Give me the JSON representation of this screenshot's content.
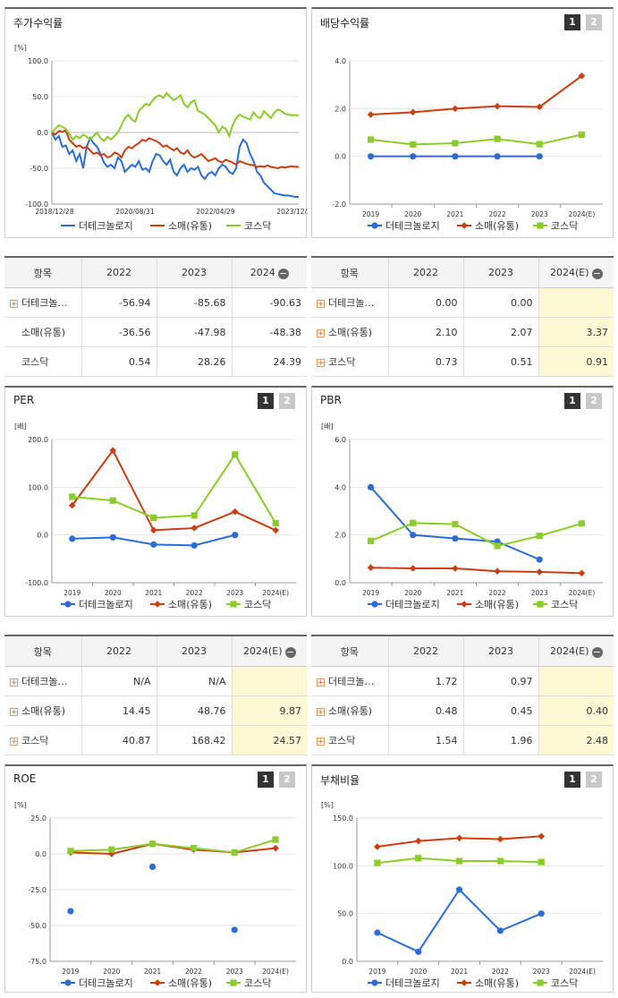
{
  "colors": {
    "series1": "#2a6dd6",
    "series2": "#cc3d12",
    "series3": "#8ccc2a",
    "axis": "#999",
    "grid": "#e6e6e6",
    "est_bg": "#fdf8d4"
  },
  "icons": {
    "pager": [
      "1",
      "2"
    ],
    "expand": "+",
    "collapse": "−"
  },
  "legend": [
    "더테크놀로지",
    "소매(유통)",
    "코스닥"
  ],
  "charts": {
    "stock": {
      "title": "주가수익률",
      "chart_data": {
        "type": "line",
        "unit": "[%]",
        "ylim": [
          -100,
          100
        ],
        "yticks": [
          "100.0",
          "50.0",
          "0.0",
          "-50.0",
          "-100.0"
        ],
        "x_ticks": [
          "2018/12/28",
          "2020/08/31",
          "2022/04/29",
          "2023/12/28"
        ],
        "series": [
          {
            "name": "더테크놀로지",
            "values": [
              0,
              -10,
              -5,
              -20,
              -18,
              -30,
              -25,
              -40,
              -30,
              -50,
              -20,
              -8,
              -15,
              -20,
              -30,
              -42,
              -48,
              -45,
              -50,
              -35,
              -40,
              -55,
              -50,
              -45,
              -48,
              -40,
              -52,
              -50,
              -55,
              -40,
              -30,
              -32,
              -40,
              -45,
              -38,
              -55,
              -60,
              -50,
              -45,
              -55,
              -50,
              -52,
              -48,
              -60,
              -65,
              -58,
              -55,
              -60,
              -50,
              -45,
              -48,
              -55,
              -58,
              -50,
              -20,
              -10,
              -15,
              -30,
              -40,
              -55,
              -60,
              -70,
              -75,
              -80,
              -85,
              -86,
              -87,
              -88,
              -88,
              -89,
              -90,
              -90
            ]
          },
          {
            "name": "소매(유통)",
            "values": [
              0,
              -3,
              2,
              1,
              3,
              -10,
              -15,
              -20,
              -18,
              -22,
              -20,
              -25,
              -30,
              -28,
              -32,
              -30,
              -35,
              -33,
              -28,
              -30,
              -35,
              -25,
              -20,
              -22,
              -18,
              -15,
              -10,
              -12,
              -8,
              -10,
              -12,
              -15,
              -20,
              -18,
              -22,
              -25,
              -22,
              -28,
              -30,
              -25,
              -32,
              -35,
              -33,
              -30,
              -35,
              -40,
              -38,
              -36,
              -40,
              -42,
              -38,
              -40,
              -42,
              -45,
              -40,
              -42,
              -44,
              -45,
              -46,
              -48,
              -47,
              -48,
              -46,
              -48,
              -49,
              -50,
              -48,
              -49,
              -48,
              -47,
              -48,
              -48
            ]
          },
          {
            "name": "코스닥",
            "values": [
              0,
              5,
              10,
              8,
              5,
              -2,
              -10,
              -5,
              -8,
              -3,
              -6,
              -10,
              -5,
              0,
              -8,
              -12,
              -6,
              -10,
              -5,
              0,
              10,
              20,
              25,
              18,
              15,
              30,
              35,
              40,
              38,
              45,
              50,
              52,
              48,
              55,
              50,
              45,
              48,
              52,
              40,
              35,
              42,
              45,
              30,
              28,
              25,
              20,
              15,
              10,
              0,
              8,
              5,
              -5,
              10,
              20,
              25,
              22,
              20,
              18,
              28,
              22,
              20,
              30,
              25,
              20,
              28,
              32,
              30,
              26,
              25,
              24,
              24,
              24
            ]
          }
        ]
      }
    },
    "dividend": {
      "title": "배당수익률",
      "chart_data": {
        "type": "line",
        "unit": "",
        "ylim": [
          -2,
          4
        ],
        "yticks": [
          "4.0",
          "2.0",
          "0.0",
          "-2.0"
        ],
        "categories": [
          "2019",
          "2020",
          "2021",
          "2022",
          "2023",
          "2024(E)"
        ],
        "series": [
          {
            "name": "더테크놀로지",
            "values": [
              0,
              0,
              0,
              0,
              0,
              null
            ]
          },
          {
            "name": "소매(유통)",
            "values": [
              1.75,
              1.85,
              2.0,
              2.1,
              2.07,
              3.37
            ]
          },
          {
            "name": "코스닥",
            "values": [
              0.7,
              0.5,
              0.55,
              0.73,
              0.51,
              0.91
            ]
          }
        ]
      }
    },
    "per": {
      "title": "PER",
      "chart_data": {
        "type": "line",
        "unit": "[배]",
        "ylim": [
          -100,
          200
        ],
        "yticks": [
          "200.0",
          "100.0",
          "0.0",
          "-100.0"
        ],
        "categories": [
          "2019",
          "2020",
          "2021",
          "2022",
          "2023",
          "2024(E)"
        ],
        "series": [
          {
            "name": "더테크놀로지",
            "values": [
              -8,
              -5,
              -20,
              -22,
              0,
              null
            ]
          },
          {
            "name": "소매(유통)",
            "values": [
              62,
              177,
              10,
              14.45,
              48.76,
              9.87
            ]
          },
          {
            "name": "코스닥",
            "values": [
              80,
              72,
              36,
              40.87,
              168.42,
              24.57
            ]
          }
        ]
      }
    },
    "pbr": {
      "title": "PBR",
      "chart_data": {
        "type": "line",
        "unit": "[배]",
        "ylim": [
          0,
          6
        ],
        "yticks": [
          "6.0",
          "4.0",
          "2.0",
          "0.0"
        ],
        "categories": [
          "2019",
          "2020",
          "2021",
          "2022",
          "2023",
          "2024(E)"
        ],
        "series": [
          {
            "name": "더테크놀로지",
            "values": [
              4.0,
              2.0,
              1.85,
              1.72,
              0.97,
              null
            ]
          },
          {
            "name": "소매(유통)",
            "values": [
              0.63,
              0.6,
              0.6,
              0.48,
              0.45,
              0.4
            ]
          },
          {
            "name": "코스닥",
            "values": [
              1.75,
              2.5,
              2.45,
              1.54,
              1.96,
              2.48
            ]
          }
        ]
      }
    },
    "roe": {
      "title": "ROE",
      "chart_data": {
        "type": "line",
        "unit": "[%]",
        "ylim": [
          -75,
          25
        ],
        "yticks": [
          "25.0",
          "0.0",
          "-25.0",
          "-50.0",
          "-75.0"
        ],
        "categories": [
          "2019",
          "2020",
          "2021",
          "2022",
          "2023",
          "2024(E)"
        ],
        "series": [
          {
            "name": "더테크놀로지",
            "values": [
              -40,
              null,
              -9,
              null,
              -53,
              null
            ],
            "markers_only": true
          },
          {
            "name": "소매(유통)",
            "values": [
              1,
              0,
              7,
              3,
              1,
              4
            ]
          },
          {
            "name": "코스닥",
            "values": [
              2,
              3,
              7,
              4,
              1,
              10
            ]
          }
        ]
      }
    },
    "debt": {
      "title": "부채비율",
      "chart_data": {
        "type": "line",
        "unit": "[%]",
        "ylim": [
          0,
          150
        ],
        "yticks": [
          "150.0",
          "100.0",
          "50.0",
          "0.0"
        ],
        "categories": [
          "2019",
          "2020",
          "2021",
          "2022",
          "2023",
          "2024(E)"
        ],
        "series": [
          {
            "name": "더테크놀로지",
            "values": [
              30,
              10,
              75,
              32,
              50,
              null
            ]
          },
          {
            "name": "소매(유통)",
            "values": [
              120,
              126,
              129,
              128,
              131,
              null
            ]
          },
          {
            "name": "코스닥",
            "values": [
              103,
              108,
              105,
              105,
              104,
              null
            ]
          }
        ]
      }
    }
  },
  "tables": {
    "stock": {
      "header": [
        "항목",
        "2022",
        "2023",
        "2024"
      ],
      "rows": [
        {
          "label": "더테크놀…",
          "expand": true,
          "v": [
            "-56.94",
            "-85.68",
            "-90.63"
          ]
        },
        {
          "label": "소매(유통)",
          "expand": false,
          "v": [
            "-36.56",
            "-47.98",
            "-48.38"
          ]
        },
        {
          "label": "코스닥",
          "expand": false,
          "v": [
            "0.54",
            "28.26",
            "24.39"
          ]
        }
      ]
    },
    "dividend": {
      "header": [
        "항목",
        "2022",
        "2023",
        "2024(E)"
      ],
      "rows": [
        {
          "label": "더테크놀…",
          "expand": true,
          "v": [
            "0.00",
            "0.00",
            ""
          ]
        },
        {
          "label": "소매(유통)",
          "expand": true,
          "v": [
            "2.10",
            "2.07",
            "3.37"
          ]
        },
        {
          "label": "코스닥",
          "expand": true,
          "v": [
            "0.73",
            "0.51",
            "0.91"
          ]
        }
      ]
    },
    "per": {
      "header": [
        "항목",
        "2022",
        "2023",
        "2024(E)"
      ],
      "rows": [
        {
          "label": "더테크놀…",
          "expand": true,
          "v": [
            "N/A",
            "N/A",
            ""
          ]
        },
        {
          "label": "소매(유통)",
          "expand": true,
          "v": [
            "14.45",
            "48.76",
            "9.87"
          ]
        },
        {
          "label": "코스닥",
          "expand": true,
          "v": [
            "40.87",
            "168.42",
            "24.57"
          ]
        }
      ]
    },
    "pbr": {
      "header": [
        "항목",
        "2022",
        "2023",
        "2024(E)"
      ],
      "rows": [
        {
          "label": "더테크놀…",
          "expand": true,
          "v": [
            "1.72",
            "0.97",
            ""
          ]
        },
        {
          "label": "소매(유통)",
          "expand": true,
          "v": [
            "0.48",
            "0.45",
            "0.40"
          ]
        },
        {
          "label": "코스닥",
          "expand": true,
          "v": [
            "1.54",
            "1.96",
            "2.48"
          ]
        }
      ]
    }
  }
}
